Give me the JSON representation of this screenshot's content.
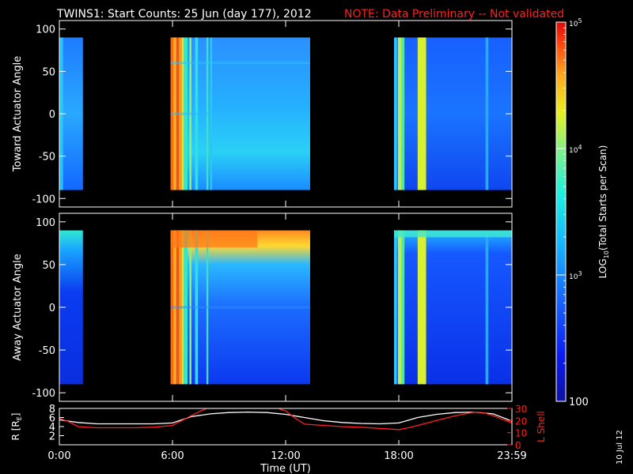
{
  "header": {
    "title": "TWINS1: Start Counts: 25 Jun (day 177), 2012",
    "note": "NOTE: Data Preliminary -- Not validated"
  },
  "footer": {
    "date_stamp": "10 Jul 12"
  },
  "colors": {
    "background": "#000000",
    "note_text": "#ff2020",
    "r_line": "#ffffff",
    "lshell_line": "#ff2020"
  },
  "chart_data": [
    {
      "type": "heatmap",
      "panel": "toward",
      "ylabel": "Toward Actuator Angle",
      "ylim": [
        -110,
        110
      ],
      "yticks": [
        100,
        50,
        0,
        -50,
        -100
      ],
      "xlim_hours": [
        0,
        24
      ],
      "data_segments_hours": [
        [
          0.0,
          1.25
        ],
        [
          5.9,
          13.3
        ],
        [
          17.75,
          24.0
        ]
      ],
      "angle_range": [
        -90,
        90
      ],
      "description_levels": {
        "0-1.25": "low (~300-1000)",
        "5.9-6.6": "high (~2e4-1e5), banded",
        "6.6-13.3": "low-moderate (~500-3000)",
        "17.75-24": "low with bright bands near 18.2 and 19.3"
      }
    },
    {
      "type": "heatmap",
      "panel": "away",
      "ylabel": "Away Actuator Angle",
      "ylim": [
        -110,
        110
      ],
      "yticks": [
        100,
        50,
        0,
        -50,
        -100
      ],
      "xlim_hours": [
        0,
        24
      ],
      "data_segments_hours": [
        [
          0.0,
          1.25
        ],
        [
          5.9,
          13.3
        ],
        [
          17.75,
          24.0
        ]
      ],
      "angle_range": [
        -90,
        90
      ],
      "high_band_angle": [
        70,
        90
      ]
    },
    {
      "type": "line",
      "panel": "orbit",
      "ylabel_left": "R [R",
      "ylabel_left_sub": "E",
      "ylabel_left_end": "]",
      "ylabel_right": "L Shell",
      "yticks_left": [
        8,
        6,
        4,
        2
      ],
      "yticks_right": [
        30,
        20,
        10,
        0
      ],
      "ylim_left": [
        0,
        8
      ],
      "ylim_right": [
        0,
        30
      ],
      "xlabel": "Time (UT)",
      "xticks": [
        "0:00",
        "6:00",
        "12:00",
        "18:00",
        "23:59"
      ],
      "xticks_hours": [
        0,
        6,
        12,
        18,
        24
      ],
      "series": [
        {
          "axis": "left",
          "color": "#ffffff",
          "x": [
            0,
            0.5,
            1,
            2,
            3,
            4,
            5,
            6,
            6.5,
            7,
            8,
            9,
            10,
            11,
            12,
            13,
            14,
            15,
            16,
            17,
            18,
            18.5,
            19,
            20,
            21,
            22,
            23,
            24
          ],
          "y": [
            5.5,
            5.2,
            4.9,
            4.6,
            4.6,
            4.6,
            4.6,
            4.8,
            5.5,
            6.2,
            6.8,
            7.1,
            7.2,
            7.1,
            6.7,
            6.0,
            5.3,
            4.9,
            4.7,
            4.6,
            4.8,
            5.4,
            6.0,
            6.7,
            7.1,
            7.2,
            6.8,
            5.2
          ]
        },
        {
          "axis": "right",
          "color": "#ff2020",
          "x": [
            0,
            0.5,
            1,
            2,
            3,
            4,
            5,
            6,
            6.5,
            7,
            7.5,
            7.8,
            11.6,
            12,
            12.5,
            13,
            14,
            15,
            16,
            17,
            18,
            18.5,
            19,
            20,
            21,
            22,
            22.5,
            23,
            24
          ],
          "y": [
            22,
            19,
            15,
            14,
            14,
            14,
            14.5,
            16,
            20,
            24,
            28,
            30,
            30,
            28,
            22,
            17,
            16,
            15,
            14.5,
            13.5,
            12.5,
            14,
            16,
            20,
            24,
            27,
            26.5,
            24,
            18
          ]
        }
      ]
    },
    {
      "type": "colorbar",
      "label": "LOG10(Total Starts per Scan)",
      "label_main": "LOG",
      "label_sub": "10",
      "label_rest": "(Total Starts per Scan)",
      "scale": "log",
      "range": [
        100,
        100000
      ],
      "ticks": [
        {
          "value": 100000,
          "base": "10",
          "exp": "5"
        },
        {
          "value": 10000,
          "base": "10",
          "exp": "4"
        },
        {
          "value": 1000,
          "base": "10",
          "exp": "3"
        },
        {
          "value": 100,
          "base": "100",
          "exp": ""
        }
      ]
    }
  ]
}
